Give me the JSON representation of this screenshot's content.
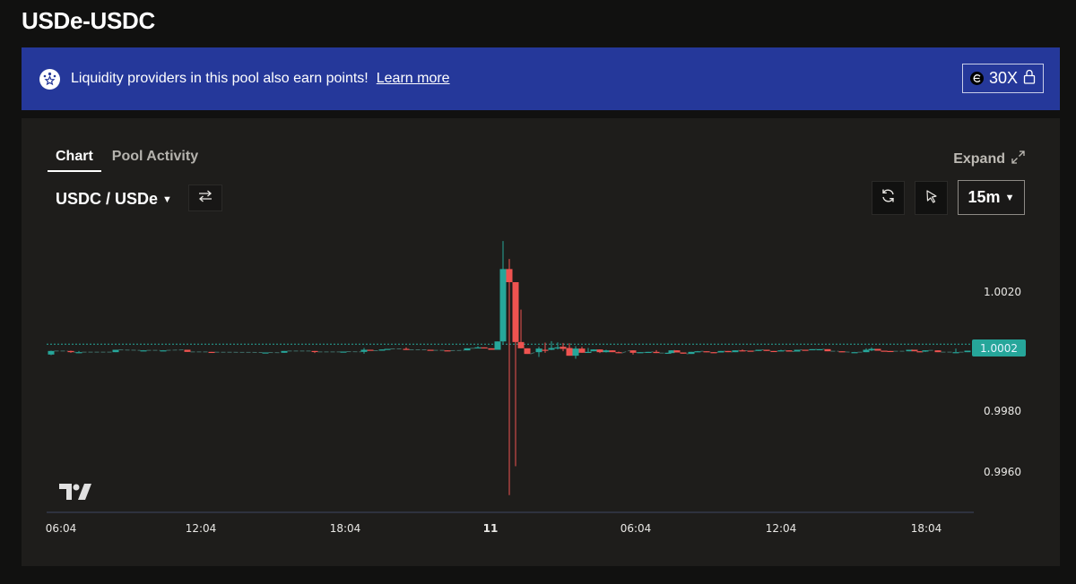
{
  "page": {
    "title": "USDe-USDC"
  },
  "banner": {
    "icon": "points-star-icon",
    "text": "Liquidity providers in this pool also earn points!",
    "link_label": "Learn more",
    "boost": {
      "icon": "ethena-coin-icon",
      "label": "30X",
      "lock_icon": "lock-icon"
    },
    "color": "#25389a"
  },
  "panel": {
    "tabs": [
      {
        "label": "Chart",
        "active": true
      },
      {
        "label": "Pool Activity",
        "active": false
      }
    ],
    "expand_label": "Expand",
    "pair_label": "USDC / USDe",
    "interval_label": "15m",
    "toolbar_icons": [
      "swap-arrows-icon",
      "refresh-icon",
      "cursor-pointer-icon"
    ]
  },
  "chart_data": {
    "type": "candlestick",
    "title": "USDC / USDe",
    "interval": "15m",
    "y_ticks": [
      "1.0020",
      "0.9980",
      "0.9960"
    ],
    "x_ticks": [
      "06:04",
      "12:04",
      "18:04",
      "11",
      "06:04",
      "12:04",
      "18:04"
    ],
    "current_price": "1.0002",
    "ylim": [
      0.9953,
      1.003
    ],
    "colors": {
      "up": "#26a69a",
      "down": "#ef5350",
      "price_line": "#26a69a"
    },
    "candles": [
      {
        "x": 57,
        "o": 0.9999,
        "c": 1.00002,
        "h": 1.00003,
        "l": 0.99988
      },
      {
        "x": 79,
        "o": 1.00002,
        "c": 0.99998,
        "h": 1.00003,
        "l": 0.99996
      },
      {
        "x": 88,
        "o": 0.99998,
        "c": 0.99998,
        "h": 1.00002,
        "l": 0.99998
      },
      {
        "x": 129,
        "o": 0.99998,
        "c": 1.00006,
        "h": 1.00006,
        "l": 0.99998
      },
      {
        "x": 160,
        "o": 1.00004,
        "c": 1.00004,
        "h": 1.00005,
        "l": 1.00004
      },
      {
        "x": 182,
        "o": 1.00004,
        "c": 1.00004,
        "h": 1.00005,
        "l": 1.00004
      },
      {
        "x": 209,
        "o": 1.00006,
        "c": 0.99999,
        "h": 1.00006,
        "l": 0.99999
      },
      {
        "x": 236,
        "o": 0.99999,
        "c": 0.99998,
        "h": 0.99999,
        "l": 0.99998
      },
      {
        "x": 296,
        "o": 0.99997,
        "c": 0.99997,
        "h": 0.99997,
        "l": 0.99996
      },
      {
        "x": 317,
        "o": 0.99996,
        "c": 1.00002,
        "h": 1.00002,
        "l": 0.99996
      },
      {
        "x": 351,
        "o": 1.00002,
        "c": 0.99999,
        "h": 1.00002,
        "l": 0.99995
      },
      {
        "x": 383,
        "o": 0.99999,
        "c": 1.0,
        "h": 1.0,
        "l": 0.99999
      },
      {
        "x": 406,
        "o": 0.99999,
        "c": 1.00006,
        "h": 1.00012,
        "l": 0.99993
      },
      {
        "x": 413,
        "o": 1.00006,
        "c": 1.00003,
        "h": 1.00006,
        "l": 1.00003
      },
      {
        "x": 426,
        "o": 1.00003,
        "c": 1.00007,
        "h": 1.00007,
        "l": 1.00003
      },
      {
        "x": 432,
        "o": 1.00007,
        "c": 1.00009,
        "h": 1.00009,
        "l": 1.00007
      },
      {
        "x": 453,
        "o": 1.00009,
        "c": 1.00006,
        "h": 1.00014,
        "l": 1.00006
      },
      {
        "x": 480,
        "o": 1.00006,
        "c": 1.00004,
        "h": 1.00006,
        "l": 1.00004
      },
      {
        "x": 499,
        "o": 1.00004,
        "c": 1.00003,
        "h": 1.00004,
        "l": 1.00003
      },
      {
        "x": 521,
        "o": 1.00004,
        "c": 1.00011,
        "h": 1.00011,
        "l": 1.00004
      },
      {
        "x": 533,
        "o": 1.00011,
        "c": 1.00014,
        "h": 1.00018,
        "l": 1.00011
      },
      {
        "x": 540,
        "o": 1.00014,
        "c": 1.00011,
        "h": 1.00014,
        "l": 1.00011
      },
      {
        "x": 548,
        "o": 1.00011,
        "c": 1.00006,
        "h": 1.00011,
        "l": 1.00006
      },
      {
        "x": 555,
        "o": 1.00006,
        "c": 1.00034,
        "h": 1.00034,
        "l": 1.00006
      },
      {
        "x": 561,
        "o": 1.00034,
        "c": 1.00277,
        "h": 1.00371,
        "l": 1.00025
      },
      {
        "x": 568,
        "o": 1.00277,
        "c": 1.00233,
        "h": 1.00311,
        "l": 0.99518
      },
      {
        "x": 575,
        "o": 1.00233,
        "c": 1.00032,
        "h": 1.00233,
        "l": 0.99615
      },
      {
        "x": 581,
        "o": 1.00032,
        "c": 1.00011,
        "h": 1.00141,
        "l": 1.00011
      },
      {
        "x": 588,
        "o": 1.00011,
        "c": 0.99992,
        "h": 1.00011,
        "l": 0.99992
      },
      {
        "x": 601,
        "o": 0.99998,
        "c": 1.0001,
        "h": 1.00016,
        "l": 0.99982
      },
      {
        "x": 608,
        "o": 1.00006,
        "c": 1.00003,
        "h": 1.0003,
        "l": 0.99996
      },
      {
        "x": 615,
        "o": 1.00006,
        "c": 1.00012,
        "h": 1.00035,
        "l": 1.00005
      },
      {
        "x": 622,
        "o": 1.00011,
        "c": 1.00014,
        "h": 1.00031,
        "l": 1.00007
      },
      {
        "x": 628,
        "o": 1.00016,
        "c": 1.00009,
        "h": 1.00029,
        "l": 1.00001
      },
      {
        "x": 635,
        "o": 1.00012,
        "c": 0.99986,
        "h": 1.00028,
        "l": 0.99986
      },
      {
        "x": 642,
        "o": 0.99986,
        "c": 1.0001,
        "h": 1.00018,
        "l": 0.99976
      },
      {
        "x": 649,
        "o": 1.0001,
        "c": 0.99996,
        "h": 1.00016,
        "l": 0.99996
      },
      {
        "x": 656,
        "o": 0.99996,
        "c": 0.99999,
        "h": 1.00012,
        "l": 0.99996
      },
      {
        "x": 662,
        "o": 1.00001,
        "c": 1.00007,
        "h": 1.00007,
        "l": 1.00001
      },
      {
        "x": 669,
        "o": 1.00007,
        "c": 0.99998,
        "h": 1.00007,
        "l": 0.99995
      },
      {
        "x": 676,
        "o": 0.99998,
        "c": 1.00004,
        "h": 1.00006,
        "l": 0.99997
      },
      {
        "x": 683,
        "o": 1.00004,
        "c": 0.99998,
        "h": 1.00004,
        "l": 0.99998
      },
      {
        "x": 690,
        "o": 0.99998,
        "c": 0.99995,
        "h": 1.0,
        "l": 0.99995
      },
      {
        "x": 706,
        "o": 1.00004,
        "c": 0.99996,
        "h": 1.00004,
        "l": 0.9999
      },
      {
        "x": 714,
        "o": 0.99997,
        "c": 0.99998,
        "h": 0.99998,
        "l": 0.99997
      },
      {
        "x": 723,
        "o": 0.99996,
        "c": 0.99999,
        "h": 0.99999,
        "l": 0.99996
      },
      {
        "x": 732,
        "o": 0.99999,
        "c": 0.99995,
        "h": 1.00005,
        "l": 0.99995
      },
      {
        "x": 745,
        "o": 0.99995,
        "c": 0.99996,
        "h": 0.99996,
        "l": 0.99995
      },
      {
        "x": 749,
        "o": 0.99995,
        "c": 1.00004,
        "h": 1.00004,
        "l": 0.99995
      },
      {
        "x": 755,
        "o": 1.00004,
        "c": 0.99997,
        "h": 1.00004,
        "l": 0.99997
      },
      {
        "x": 762,
        "o": 0.99997,
        "c": 0.99993,
        "h": 0.99997,
        "l": 0.99993
      },
      {
        "x": 771,
        "o": 0.99992,
        "c": 0.99999,
        "h": 0.99999,
        "l": 0.99992
      },
      {
        "x": 778,
        "o": 0.99999,
        "c": 1.00001,
        "h": 1.00002,
        "l": 0.99999
      },
      {
        "x": 788,
        "o": 1.00001,
        "c": 0.99998,
        "h": 1.00001,
        "l": 0.99998
      },
      {
        "x": 796,
        "o": 0.99998,
        "c": 0.99997,
        "h": 0.99998,
        "l": 0.99997
      },
      {
        "x": 804,
        "o": 0.99997,
        "c": 1.00002,
        "h": 1.00002,
        "l": 0.99997
      },
      {
        "x": 812,
        "o": 1.00002,
        "c": 0.99998,
        "h": 1.00002,
        "l": 0.99998
      },
      {
        "x": 820,
        "o": 0.99998,
        "c": 1.00004,
        "h": 1.00004,
        "l": 0.99998
      },
      {
        "x": 828,
        "o": 1.00004,
        "c": 1.00003,
        "h": 1.00007,
        "l": 1.00003
      },
      {
        "x": 837,
        "o": 1.00003,
        "c": 1.00002,
        "h": 1.00003,
        "l": 1.00002
      },
      {
        "x": 846,
        "o": 1.00002,
        "c": 1.00006,
        "h": 1.00006,
        "l": 1.00002
      },
      {
        "x": 855,
        "o": 1.00006,
        "c": 1.00002,
        "h": 1.00006,
        "l": 1.00002
      },
      {
        "x": 863,
        "o": 1.00002,
        "c": 1.00001,
        "h": 1.00002,
        "l": 1.00001
      },
      {
        "x": 871,
        "o": 1.00001,
        "c": 1.00004,
        "h": 1.00006,
        "l": 1.00001
      },
      {
        "x": 880,
        "o": 1.00004,
        "c": 1.0,
        "h": 1.00004,
        "l": 1.0
      },
      {
        "x": 889,
        "o": 1.0,
        "c": 1.00006,
        "h": 1.00006,
        "l": 1.0
      },
      {
        "x": 898,
        "o": 1.00006,
        "c": 1.00005,
        "h": 1.00006,
        "l": 1.00005
      },
      {
        "x": 906,
        "o": 1.00005,
        "c": 1.00008,
        "h": 1.00008,
        "l": 1.00005
      },
      {
        "x": 914,
        "o": 1.00008,
        "c": 1.00008,
        "h": 1.00008,
        "l": 1.00007
      },
      {
        "x": 923,
        "o": 1.00008,
        "c": 1.00001,
        "h": 1.00008,
        "l": 1.00001
      },
      {
        "x": 939,
        "o": 1.00001,
        "c": 0.99999,
        "h": 1.00001,
        "l": 0.99999
      },
      {
        "x": 953,
        "o": 0.99998,
        "c": 0.99998,
        "h": 0.99999,
        "l": 0.99998
      },
      {
        "x": 966,
        "o": 0.99998,
        "c": 1.00006,
        "h": 1.00011,
        "l": 0.99998
      },
      {
        "x": 972,
        "o": 1.00004,
        "c": 1.00009,
        "h": 1.00014,
        "l": 1.00002
      },
      {
        "x": 979,
        "o": 1.00009,
        "c": 1.00003,
        "h": 1.00009,
        "l": 1.00003
      },
      {
        "x": 986,
        "o": 1.00003,
        "c": 1.00002,
        "h": 1.00003,
        "l": 1.00002
      },
      {
        "x": 993,
        "o": 1.00002,
        "c": 1.00001,
        "h": 1.00002,
        "l": 1.00001
      },
      {
        "x": 1014,
        "o": 1.00001,
        "c": 1.00006,
        "h": 1.00006,
        "l": 1.00001
      },
      {
        "x": 1020,
        "o": 1.00006,
        "c": 1.00001,
        "h": 1.00006,
        "l": 1.00001
      },
      {
        "x": 1026,
        "o": 1.00001,
        "c": 0.99998,
        "h": 1.00001,
        "l": 0.99998
      },
      {
        "x": 1032,
        "o": 1.0,
        "c": 1.00004,
        "h": 1.00004,
        "l": 0.99999
      },
      {
        "x": 1046,
        "o": 1.00004,
        "c": 0.99998,
        "h": 1.00004,
        "l": 0.99998
      },
      {
        "x": 1066,
        "o": 0.99998,
        "c": 0.99998,
        "h": 1.0001,
        "l": 0.99998
      },
      {
        "x": 1079,
        "o": 0.99998,
        "c": 1.00003,
        "h": 1.00003,
        "l": 0.99998
      }
    ]
  }
}
